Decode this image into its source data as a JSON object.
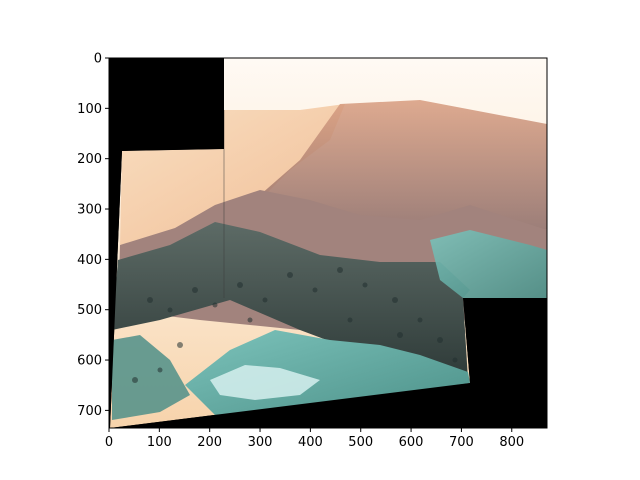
{
  "chart_data": {
    "type": "image",
    "title": "",
    "xlabel": "",
    "ylabel": "",
    "xlim": [
      0,
      870
    ],
    "ylim": [
      735,
      0
    ],
    "xticks": [
      0,
      100,
      200,
      300,
      400,
      500,
      600,
      700,
      800
    ],
    "yticks": [
      0,
      100,
      200,
      300,
      400,
      500,
      600,
      700
    ],
    "image": {
      "subject": "stitched panoramic aerial photo of forested mountain ridges above a lake, false-color tinted",
      "colors": {
        "background_mask": "#000000",
        "sky_haze": "#fbe7cf",
        "lake": "#f4c79a",
        "ridges": "#b9857a",
        "forest": "#3c4a47",
        "meadow": "#6fb5ae",
        "snow_meadow": "#d6f0ee"
      }
    }
  }
}
